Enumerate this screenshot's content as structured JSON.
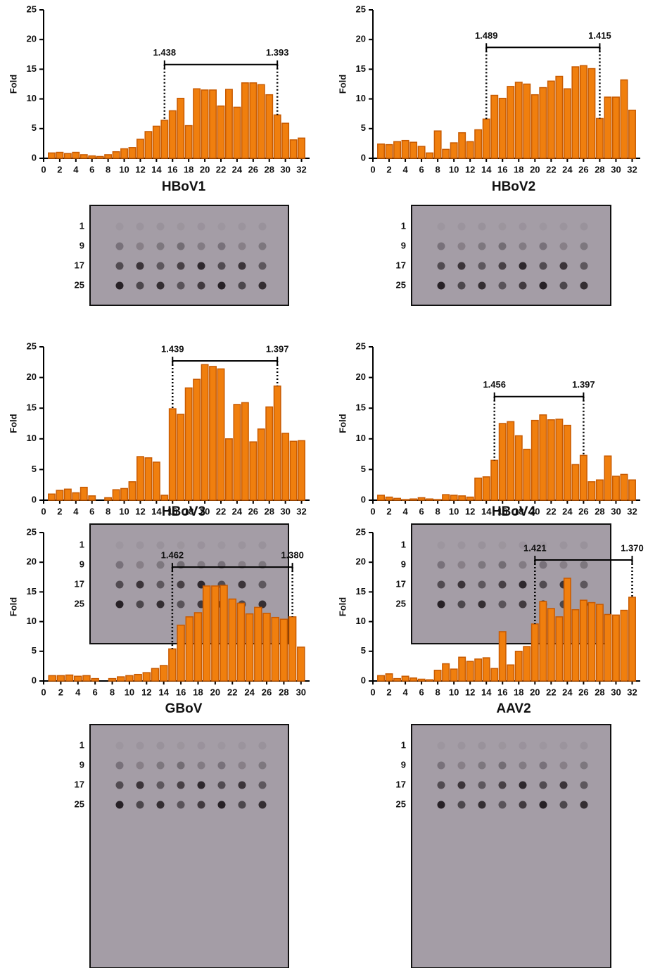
{
  "chart_data": [
    {
      "type": "bar",
      "title": "HBoV1",
      "ylabel": "Fold",
      "color": "#f07f0e",
      "edge": "#c85a00",
      "x": [
        1,
        2,
        3,
        4,
        5,
        6,
        7,
        8,
        9,
        10,
        11,
        12,
        13,
        14,
        15,
        16,
        17,
        18,
        19,
        20,
        21,
        22,
        23,
        24,
        25,
        26,
        27,
        28,
        29,
        30,
        31,
        32
      ],
      "values": [
        0.9,
        1.0,
        0.8,
        1.0,
        0.6,
        0.4,
        0.3,
        0.6,
        1.1,
        1.6,
        1.8,
        3.2,
        4.5,
        5.4,
        6.4,
        8.0,
        10.1,
        5.5,
        11.7,
        11.5,
        11.5,
        8.8,
        11.6,
        8.6,
        12.7,
        12.7,
        12.4,
        10.7,
        7.3,
        5.9,
        3.1,
        3.4
      ],
      "xlim": [
        0,
        33
      ],
      "xticks": [
        0,
        2,
        4,
        6,
        8,
        10,
        12,
        14,
        16,
        18,
        20,
        22,
        24,
        26,
        28,
        30,
        32
      ],
      "ylim": [
        0,
        25
      ],
      "yticks": [
        0,
        5,
        10,
        15,
        20,
        25
      ],
      "annotations": [
        {
          "x": 15,
          "text": "1.438"
        },
        {
          "x": 29,
          "text": "1.393"
        }
      ],
      "blot_rows": [
        "1",
        "9",
        "17",
        "25"
      ]
    },
    {
      "type": "bar",
      "title": "HBoV2",
      "ylabel": "Fold",
      "color": "#f07f0e",
      "edge": "#c85a00",
      "x": [
        1,
        2,
        3,
        4,
        5,
        6,
        7,
        8,
        9,
        10,
        11,
        12,
        13,
        14,
        15,
        16,
        17,
        18,
        19,
        20,
        21,
        22,
        23,
        24,
        25,
        26,
        27,
        28,
        29,
        30,
        31,
        32
      ],
      "values": [
        2.4,
        2.3,
        2.8,
        3.0,
        2.7,
        2.0,
        0.9,
        4.6,
        1.5,
        2.6,
        4.3,
        2.8,
        4.8,
        6.6,
        10.6,
        10.1,
        12.1,
        12.8,
        12.5,
        10.7,
        11.9,
        13.0,
        13.8,
        11.7,
        15.4,
        15.6,
        15.1,
        6.7,
        10.3,
        10.3,
        13.2,
        8.1
      ],
      "xlim": [
        0,
        33
      ],
      "xticks": [
        0,
        2,
        4,
        6,
        8,
        10,
        12,
        14,
        16,
        18,
        20,
        22,
        24,
        26,
        28,
        30,
        32
      ],
      "ylim": [
        0,
        25
      ],
      "yticks": [
        0,
        5,
        10,
        15,
        20,
        25
      ],
      "annotations": [
        {
          "x": 14,
          "text": "1.489"
        },
        {
          "x": 28,
          "text": "1.415"
        }
      ],
      "blot_rows": [
        "1",
        "9",
        "17",
        "25"
      ]
    },
    {
      "type": "bar",
      "title": "HBoV3",
      "ylabel": "Fold",
      "color": "#f07f0e",
      "edge": "#c85a00",
      "x": [
        1,
        2,
        3,
        4,
        5,
        6,
        7,
        8,
        9,
        10,
        11,
        12,
        13,
        14,
        15,
        16,
        17,
        18,
        19,
        20,
        21,
        22,
        23,
        24,
        25,
        26,
        27,
        28,
        29,
        30,
        31,
        32
      ],
      "values": [
        1.0,
        1.6,
        1.8,
        1.2,
        2.1,
        0.7,
        0,
        0.4,
        1.7,
        1.9,
        3.0,
        7.1,
        6.9,
        6.2,
        0.8,
        14.9,
        14.0,
        18.3,
        19.7,
        22.1,
        21.8,
        21.4,
        10.0,
        15.6,
        15.9,
        9.5,
        11.6,
        15.2,
        18.6,
        10.9,
        9.6,
        9.7
      ],
      "xlim": [
        0,
        33
      ],
      "xticks": [
        0,
        2,
        4,
        6,
        8,
        10,
        12,
        14,
        16,
        18,
        20,
        22,
        24,
        26,
        28,
        30,
        32
      ],
      "ylim": [
        0,
        25
      ],
      "yticks": [
        0,
        5,
        10,
        15,
        20,
        25
      ],
      "annotations": [
        {
          "x": 16,
          "text": "1.439"
        },
        {
          "x": 29,
          "text": "1.397"
        }
      ],
      "blot_rows": [
        "1",
        "9",
        "17",
        "25"
      ]
    },
    {
      "type": "bar",
      "title": "HBoV4",
      "ylabel": "Fold",
      "color": "#f07f0e",
      "edge": "#c85a00",
      "x": [
        1,
        2,
        3,
        4,
        5,
        6,
        7,
        8,
        9,
        10,
        11,
        12,
        13,
        14,
        15,
        16,
        17,
        18,
        19,
        20,
        21,
        22,
        23,
        24,
        25,
        26,
        27,
        28,
        29,
        30,
        31,
        32
      ],
      "values": [
        0.8,
        0.5,
        0.3,
        0.1,
        0.2,
        0.4,
        0.2,
        0.1,
        0.9,
        0.8,
        0.7,
        0.5,
        3.6,
        3.8,
        6.5,
        12.5,
        12.8,
        10.5,
        8.3,
        13.0,
        13.9,
        13.1,
        13.2,
        12.2,
        5.8,
        7.3,
        3.0,
        3.3,
        7.2,
        3.9,
        4.2,
        3.3
      ],
      "xlim": [
        0,
        33
      ],
      "xticks": [
        0,
        2,
        4,
        6,
        8,
        10,
        12,
        14,
        16,
        18,
        20,
        22,
        24,
        26,
        28,
        30,
        32
      ],
      "ylim": [
        0,
        25
      ],
      "yticks": [
        0,
        5,
        10,
        15,
        20,
        25
      ],
      "annotations": [
        {
          "x": 15,
          "text": "1.456"
        },
        {
          "x": 26,
          "text": "1.397"
        }
      ],
      "blot_rows": [
        "1",
        "9",
        "17",
        "25"
      ]
    },
    {
      "type": "bar",
      "title": "GBoV",
      "ylabel": "Fold",
      "color": "#f07f0e",
      "edge": "#c85a00",
      "x": [
        1,
        2,
        3,
        4,
        5,
        6,
        7,
        8,
        9,
        10,
        11,
        12,
        13,
        14,
        15,
        16,
        17,
        18,
        19,
        20,
        21,
        22,
        23,
        24,
        25,
        26,
        27,
        28,
        29,
        30
      ],
      "values": [
        0.9,
        0.9,
        1.0,
        0.8,
        0.9,
        0.4,
        0,
        0.4,
        0.7,
        0.9,
        1.1,
        1.4,
        2.1,
        2.6,
        5.4,
        9.4,
        10.8,
        11.5,
        16.0,
        16.0,
        16.1,
        13.8,
        13.1,
        11.3,
        12.4,
        11.4,
        10.7,
        10.4,
        10.8,
        5.7
      ],
      "xlim": [
        0,
        31
      ],
      "xticks": [
        0,
        2,
        4,
        6,
        8,
        10,
        12,
        14,
        16,
        18,
        20,
        22,
        24,
        26,
        28,
        30
      ],
      "ylim": [
        0,
        25
      ],
      "yticks": [
        0,
        5,
        10,
        15,
        20,
        25
      ],
      "annotations": [
        {
          "x": 15,
          "text": "1.462"
        },
        {
          "x": 29,
          "text": "1.380"
        }
      ],
      "blot_rows": [
        "1",
        "9",
        "17",
        "25"
      ]
    },
    {
      "type": "bar",
      "title": "AAV2",
      "ylabel": "Fold",
      "color": "#f07f0e",
      "edge": "#c85a00",
      "x": [
        1,
        2,
        3,
        4,
        5,
        6,
        7,
        8,
        9,
        10,
        11,
        12,
        13,
        14,
        15,
        16,
        17,
        18,
        19,
        20,
        21,
        22,
        23,
        24,
        25,
        26,
        27,
        28,
        29,
        30,
        31,
        32
      ],
      "values": [
        0.9,
        1.2,
        0.4,
        0.8,
        0.5,
        0.3,
        0.2,
        1.8,
        2.9,
        2.0,
        4.0,
        3.3,
        3.7,
        3.9,
        2.1,
        8.3,
        2.7,
        5.0,
        5.8,
        9.6,
        13.4,
        12.2,
        10.8,
        17.3,
        12.0,
        13.6,
        13.2,
        12.9,
        11.2,
        11.1,
        11.9,
        14.1
      ],
      "xlim": [
        0,
        33
      ],
      "xticks": [
        0,
        2,
        4,
        6,
        8,
        10,
        12,
        14,
        16,
        18,
        20,
        22,
        24,
        26,
        28,
        30,
        32
      ],
      "ylim": [
        0,
        25
      ],
      "yticks": [
        0,
        5,
        10,
        15,
        20,
        25
      ],
      "annotations": [
        {
          "x": 20,
          "text": "1.421"
        },
        {
          "x": 32,
          "text": "1.370"
        }
      ],
      "blot_rows": [
        "1",
        "9",
        "17",
        "25"
      ]
    }
  ]
}
